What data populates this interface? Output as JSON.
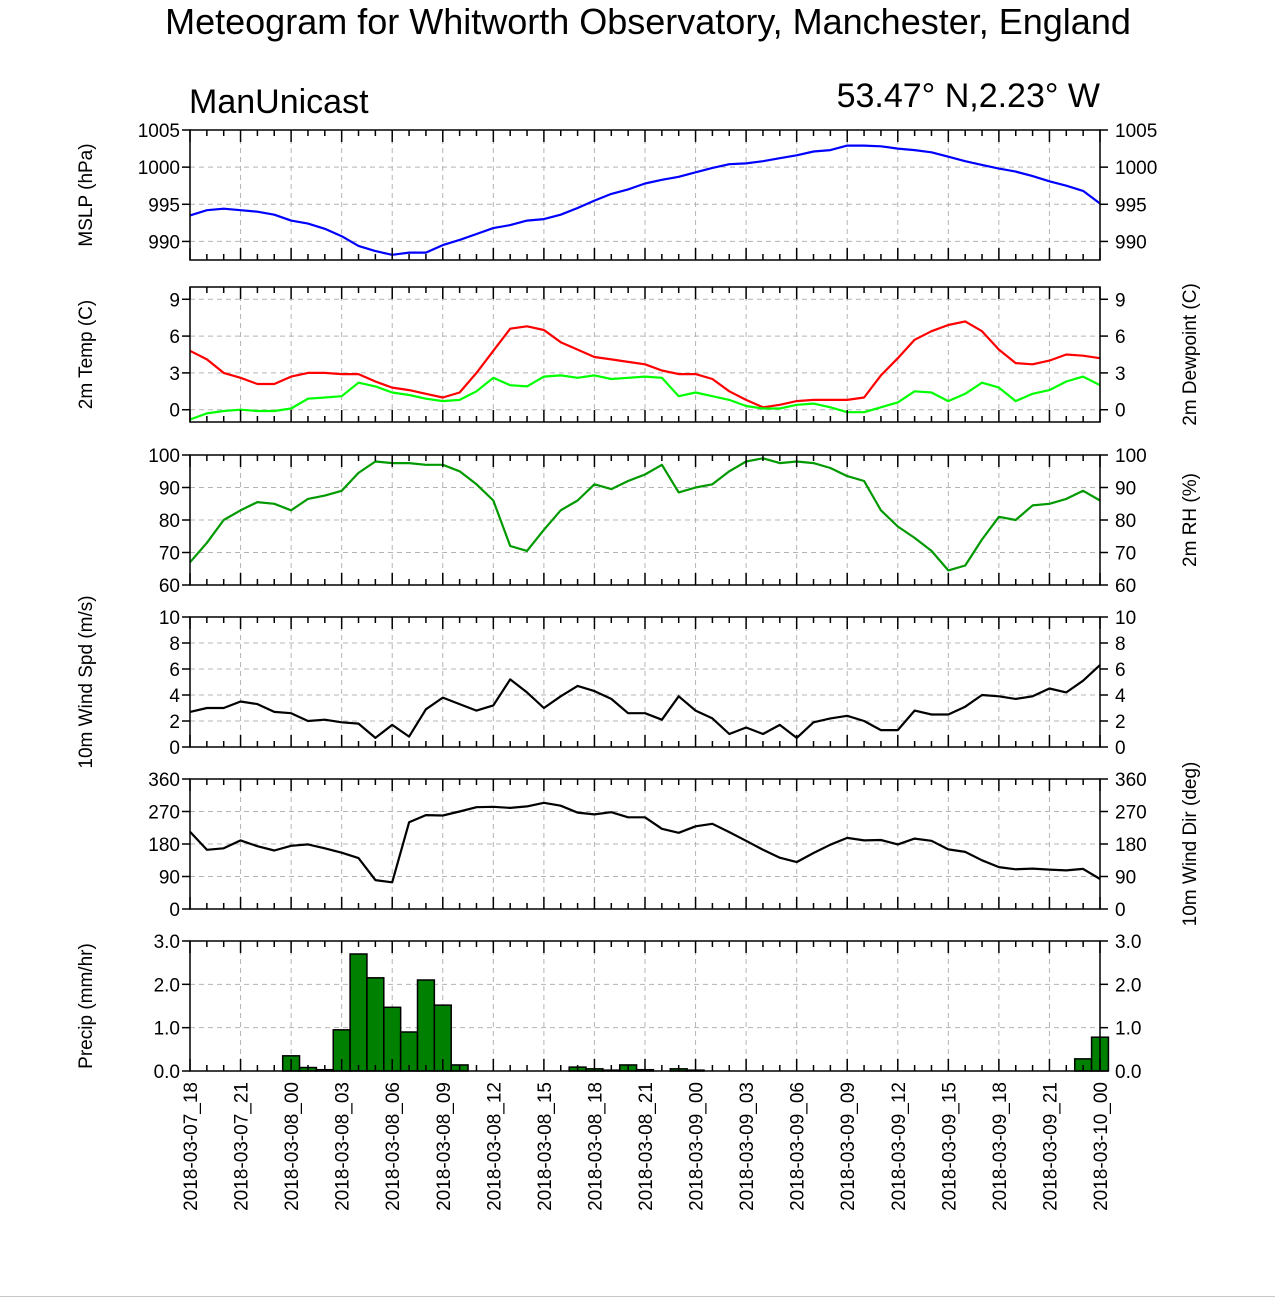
{
  "header": {
    "title": "Meteogram for Whitworth Observatory, Manchester, England",
    "left_label": "ManUnicast",
    "right_label": "53.47° N,2.23° W"
  },
  "chart_data": {
    "type": "line",
    "x": [
      "2018-03-07_18",
      "2018-03-07_19",
      "2018-03-07_20",
      "2018-03-07_21",
      "2018-03-07_22",
      "2018-03-07_23",
      "2018-03-08_00",
      "2018-03-08_01",
      "2018-03-08_02",
      "2018-03-08_03",
      "2018-03-08_04",
      "2018-03-08_05",
      "2018-03-08_06",
      "2018-03-08_07",
      "2018-03-08_08",
      "2018-03-08_09",
      "2018-03-08_10",
      "2018-03-08_11",
      "2018-03-08_12",
      "2018-03-08_13",
      "2018-03-08_14",
      "2018-03-08_15",
      "2018-03-08_16",
      "2018-03-08_17",
      "2018-03-08_18",
      "2018-03-08_19",
      "2018-03-08_20",
      "2018-03-08_21",
      "2018-03-08_22",
      "2018-03-08_23",
      "2018-03-09_00",
      "2018-03-09_01",
      "2018-03-09_02",
      "2018-03-09_03",
      "2018-03-09_04",
      "2018-03-09_05",
      "2018-03-09_06",
      "2018-03-09_07",
      "2018-03-09_08",
      "2018-03-09_09",
      "2018-03-09_10",
      "2018-03-09_11",
      "2018-03-09_12",
      "2018-03-09_13",
      "2018-03-09_14",
      "2018-03-09_15",
      "2018-03-09_16",
      "2018-03-09_17",
      "2018-03-09_18",
      "2018-03-09_19",
      "2018-03-09_20",
      "2018-03-09_21",
      "2018-03-09_22",
      "2018-03-09_23",
      "2018-03-10_00"
    ],
    "x_tick_labels": [
      "2018-03-07_18",
      "2018-03-07_21",
      "2018-03-08_00",
      "2018-03-08_03",
      "2018-03-08_06",
      "2018-03-08_09",
      "2018-03-08_12",
      "2018-03-08_15",
      "2018-03-08_18",
      "2018-03-08_21",
      "2018-03-09_00",
      "2018-03-09_03",
      "2018-03-09_06",
      "2018-03-09_09",
      "2018-03-09_12",
      "2018-03-09_15",
      "2018-03-09_18",
      "2018-03-09_21",
      "2018-03-10_00"
    ],
    "grid": true,
    "panels": [
      {
        "ylabel": "MSLP (hPa)",
        "ylabel_right": "",
        "ylim": [
          987.5,
          1005
        ],
        "yticks": [
          "990",
          "995",
          "1000",
          "1005"
        ],
        "series": [
          {
            "color": "#0000ff",
            "values": [
              993.5,
              994.2,
              994.4,
              994.2,
              994.0,
              993.6,
              992.8,
              992.4,
              991.7,
              990.7,
              989.4,
              988.7,
              988.2,
              988.5,
              988.5,
              989.5,
              990.2,
              991.0,
              991.8,
              992.2,
              992.8,
              993.0,
              993.6,
              994.5,
              995.5,
              996.4,
              997.0,
              997.8,
              998.3,
              998.7,
              999.3,
              999.9,
              1000.4,
              1000.5,
              1000.8,
              1001.2,
              1001.6,
              1002.1,
              1002.3,
              1002.9,
              1002.9,
              1002.8,
              1002.5,
              1002.3,
              1002.0,
              1001.4,
              1000.8,
              1000.3,
              999.8,
              999.4,
              998.8,
              998.1,
              997.5,
              996.8,
              995.1
            ]
          }
        ]
      },
      {
        "ylabel": "2m Temp (C)",
        "ylabel_right": "2m Dewpoint (C)",
        "ylim": [
          -1,
          10
        ],
        "yticks": [
          "0",
          "3",
          "6",
          "9"
        ],
        "series": [
          {
            "color": "#ff0000",
            "values": [
              4.8,
              4.1,
              3.0,
              2.6,
              2.1,
              2.1,
              2.7,
              3.0,
              3.0,
              2.9,
              2.9,
              2.3,
              1.8,
              1.6,
              1.3,
              1.0,
              1.4,
              3.0,
              4.8,
              6.6,
              6.8,
              6.5,
              5.5,
              4.9,
              4.3,
              4.1,
              3.9,
              3.7,
              3.2,
              2.9,
              2.9,
              2.5,
              1.5,
              0.8,
              0.2,
              0.4,
              0.7,
              0.8,
              0.8,
              0.8,
              1.0,
              2.8,
              4.2,
              5.7,
              6.4,
              6.9,
              7.2,
              6.4,
              4.9,
              3.8,
              3.7,
              4.0,
              4.5,
              4.4,
              4.2
            ]
          },
          {
            "color": "#00ff00",
            "values": [
              -0.8,
              -0.3,
              -0.1,
              0.0,
              -0.1,
              -0.1,
              0.1,
              0.9,
              1.0,
              1.1,
              2.2,
              1.9,
              1.4,
              1.2,
              0.9,
              0.7,
              0.8,
              1.5,
              2.6,
              2.0,
              1.9,
              2.7,
              2.8,
              2.6,
              2.8,
              2.5,
              2.6,
              2.7,
              2.6,
              1.1,
              1.4,
              1.1,
              0.8,
              0.3,
              0.1,
              0.1,
              0.4,
              0.5,
              0.2,
              -0.2,
              -0.2,
              0.2,
              0.6,
              1.5,
              1.4,
              0.7,
              1.3,
              2.2,
              1.8,
              0.7,
              1.3,
              1.6,
              2.3,
              2.7,
              2.0
            ]
          }
        ]
      },
      {
        "ylabel": "",
        "ylabel_right": "2m RH (%)",
        "ylim": [
          60,
          100
        ],
        "yticks": [
          "60",
          "70",
          "80",
          "90",
          "100"
        ],
        "series": [
          {
            "color": "#009900",
            "values": [
              67,
              73,
              80,
              83,
              85.5,
              85,
              83,
              86.5,
              87.5,
              89,
              94.5,
              98,
              97.5,
              97.5,
              97,
              97,
              95,
              91,
              86,
              72,
              70.5,
              77,
              83,
              86,
              91,
              89.5,
              92,
              94,
              97,
              88.5,
              90,
              91,
              95,
              98,
              99,
              97.5,
              98,
              97.5,
              96,
              93.5,
              92,
              83,
              78,
              74.5,
              70.5,
              64.5,
              66,
              74,
              81,
              80,
              84.5,
              85,
              86.5,
              89,
              86
            ]
          }
        ]
      },
      {
        "ylabel": "10m Wind Spd (m/s)",
        "ylabel_right": "",
        "ylim": [
          0,
          10
        ],
        "yticks": [
          "0",
          "2",
          "4",
          "6",
          "8",
          "10"
        ],
        "series": [
          {
            "color": "#000000",
            "values": [
              2.7,
              3.0,
              3.0,
              3.5,
              3.3,
              2.7,
              2.6,
              2.0,
              2.1,
              1.9,
              1.8,
              0.7,
              1.7,
              0.8,
              2.9,
              3.8,
              3.3,
              2.8,
              3.2,
              5.2,
              4.2,
              3.0,
              3.9,
              4.7,
              4.3,
              3.7,
              2.6,
              2.6,
              2.1,
              3.9,
              2.8,
              2.2,
              1.0,
              1.5,
              1.0,
              1.7,
              0.7,
              1.9,
              2.2,
              2.4,
              2.0,
              1.3,
              1.3,
              2.8,
              2.5,
              2.5,
              3.1,
              4.0,
              3.9,
              3.7,
              3.9,
              4.5,
              4.2,
              5.1,
              6.3
            ]
          }
        ]
      },
      {
        "ylabel": "",
        "ylabel_right": "10m Wind Dir (deg)",
        "ylim": [
          0,
          360
        ],
        "yticks": [
          "0",
          "90",
          "180",
          "270",
          "360"
        ],
        "series": [
          {
            "color": "#000000",
            "values": [
              214,
              164,
              168,
              190,
              174,
              162,
              175,
              179,
              168,
              156,
              141,
              80,
              74,
              240,
              260,
              259,
              270,
              282,
              283,
              280,
              284,
              294,
              286,
              267,
              262,
              268,
              254,
              254,
              222,
              211,
              229,
              236,
              213,
              189,
              164,
              142,
              130,
              155,
              178,
              197,
              190,
              191,
              179,
              195,
              189,
              165,
              158,
              135,
              116,
              110,
              112,
              109,
              107,
              111,
              83
            ]
          }
        ]
      },
      {
        "type": "bar",
        "ylabel": "Precip (mm/hr)",
        "ylabel_right": "",
        "ylim": [
          0,
          3
        ],
        "yticks": [
          "0.0",
          "1.0",
          "2.0",
          "3.0"
        ],
        "color": "#008000",
        "values": [
          0,
          0,
          0,
          0,
          0,
          0.35,
          0.08,
          0.03,
          0.95,
          2.7,
          2.15,
          1.47,
          0.9,
          2.1,
          1.52,
          0.14,
          0,
          0,
          0,
          0,
          0,
          0,
          0.09,
          0.05,
          0.02,
          0.14,
          0.03,
          0,
          0.05,
          0.02,
          0,
          0,
          0,
          0,
          0,
          0,
          0,
          0,
          0,
          0,
          0,
          0,
          0,
          0,
          0,
          0,
          0,
          0,
          0,
          0,
          0,
          0,
          0.28,
          0.78
        ]
      }
    ]
  }
}
